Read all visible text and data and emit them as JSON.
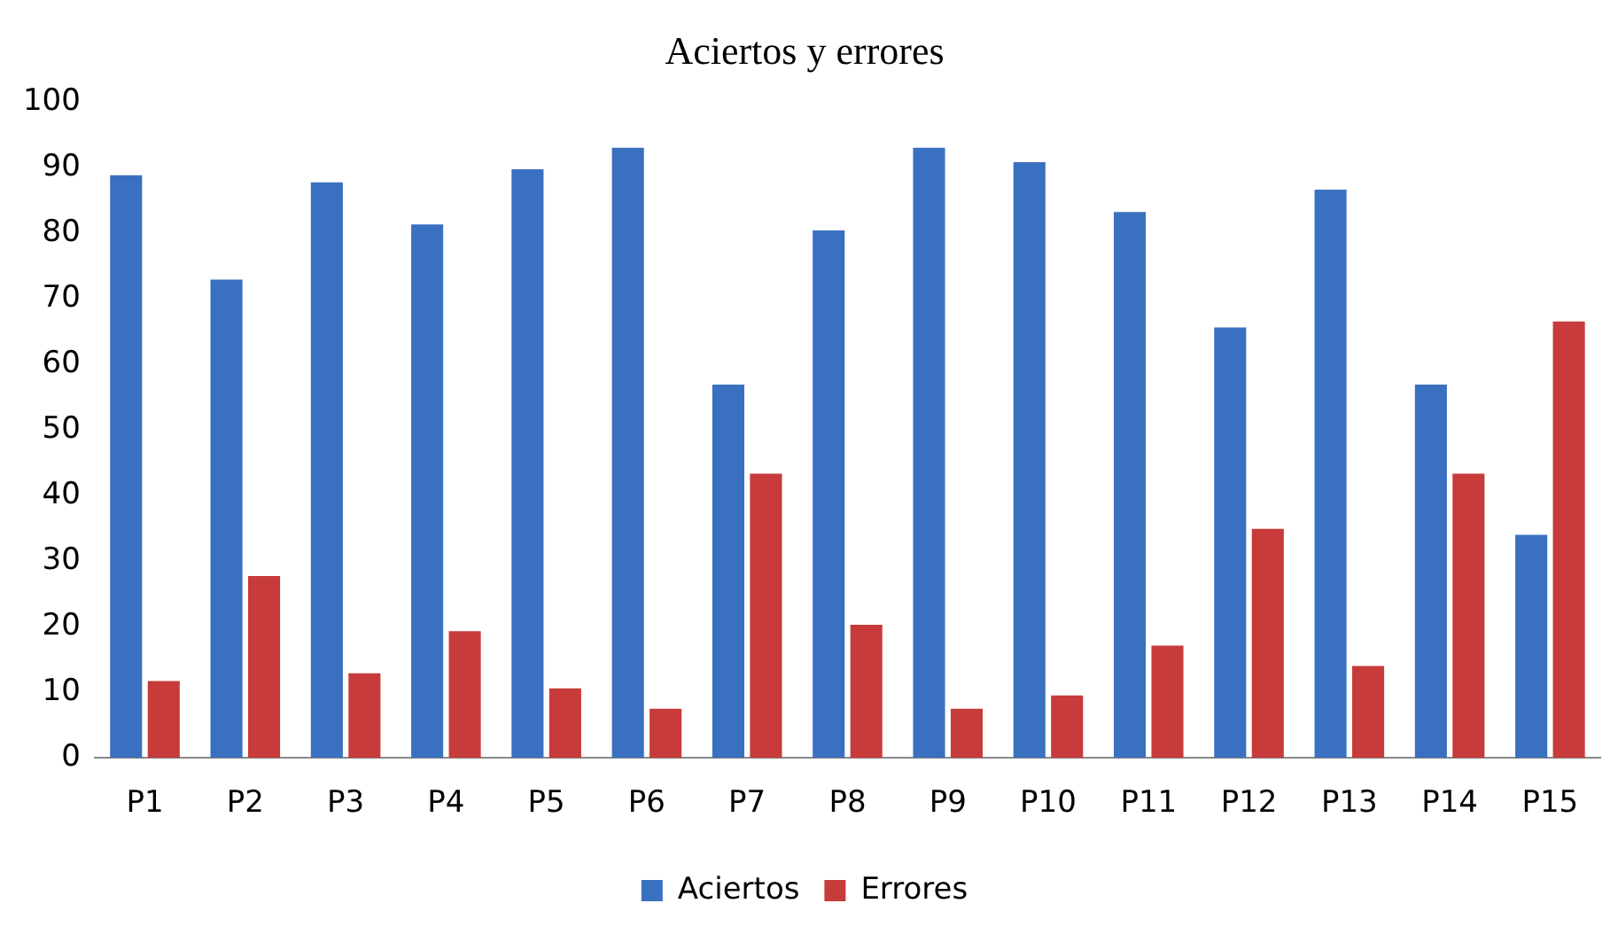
{
  "chart_data": {
    "type": "bar",
    "title": "Aciertos y errores",
    "categories": [
      "P1",
      "P2",
      "P3",
      "P4",
      "P5",
      "P6",
      "P7",
      "P8",
      "P9",
      "P10",
      "P11",
      "P12",
      "P13",
      "P14",
      "P15"
    ],
    "series": [
      {
        "name": "Aciertos",
        "color": "#3a70c0",
        "values": [
          88.8,
          72.9,
          87.7,
          81.3,
          89.7,
          93,
          56.9,
          80.4,
          93,
          90.8,
          83.2,
          65.6,
          86.6,
          56.9,
          34
        ]
      },
      {
        "name": "Errores",
        "color": "#c83b3b",
        "values": [
          11.7,
          27.7,
          12.9,
          19.3,
          10.6,
          7.5,
          43.3,
          20.3,
          7.5,
          9.5,
          17.1,
          34.9,
          14,
          43.3,
          66.5
        ]
      }
    ],
    "ylim": [
      0,
      100
    ],
    "yticks": [
      0,
      10,
      20,
      30,
      40,
      50,
      60,
      70,
      80,
      90,
      100
    ],
    "grid": false,
    "legend": "bottom"
  }
}
